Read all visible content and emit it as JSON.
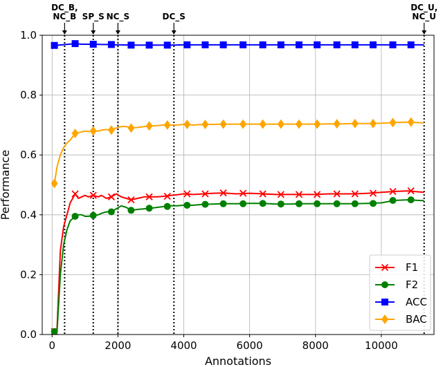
{
  "chart_data": {
    "type": "line",
    "title": "",
    "xlabel": "Annotations",
    "ylabel": "Performance",
    "xlim": [
      -300,
      11600
    ],
    "ylim": [
      0.0,
      1.0
    ],
    "xticks": [
      0,
      2000,
      4000,
      6000,
      8000,
      10000
    ],
    "xtick_labels": [
      "0",
      "2000",
      "4000",
      "6000",
      "8000",
      "10000"
    ],
    "yticks": [
      0.0,
      0.2,
      0.4,
      0.6,
      0.8,
      1.0
    ],
    "ytick_labels": [
      "0.0",
      "0.2",
      "0.4",
      "0.6",
      "0.8",
      "1.0"
    ],
    "grid": true,
    "legend_position": "lower-right",
    "markers": [
      {
        "x": 380,
        "lines": [
          "DC_B,",
          "NC_B"
        ]
      },
      {
        "x": 1250,
        "lines": [
          "SP_S"
        ]
      },
      {
        "x": 2000,
        "lines": [
          "NC_S"
        ]
      },
      {
        "x": 3700,
        "lines": [
          "DC_S"
        ]
      },
      {
        "x": 11300,
        "lines": [
          "DC_U,",
          "NC_U"
        ]
      }
    ],
    "series": [
      {
        "name": "F1",
        "color": "#ff0000",
        "marker": "x",
        "x": [
          70,
          150,
          250,
          350,
          450,
          550,
          700,
          800,
          900,
          1000,
          1100,
          1250,
          1400,
          1500,
          1650,
          1800,
          1950,
          2100,
          2250,
          2400,
          2600,
          2800,
          3000,
          3200,
          3400,
          3600,
          3800,
          4000,
          4300,
          4600,
          4900,
          5200,
          5600,
          6000,
          6400,
          6800,
          7200,
          7600,
          8000,
          8400,
          8800,
          9200,
          9600,
          10000,
          10400,
          10800,
          11300
        ],
        "y": [
          0.01,
          0.02,
          0.28,
          0.36,
          0.4,
          0.44,
          0.47,
          0.455,
          0.46,
          0.465,
          0.46,
          0.465,
          0.46,
          0.465,
          0.455,
          0.46,
          0.47,
          0.46,
          0.455,
          0.45,
          0.455,
          0.46,
          0.46,
          0.46,
          0.462,
          0.465,
          0.467,
          0.47,
          0.468,
          0.47,
          0.472,
          0.473,
          0.47,
          0.472,
          0.47,
          0.468,
          0.468,
          0.468,
          0.468,
          0.47,
          0.47,
          0.47,
          0.472,
          0.475,
          0.478,
          0.48,
          0.475
        ],
        "marker_x": [
          70,
          700,
          1250,
          1800,
          2400,
          2950,
          3500,
          4100,
          4650,
          5200,
          5800,
          6400,
          6950,
          7500,
          8050,
          8650,
          9200,
          9750,
          10350,
          10900
        ],
        "marker_y": [
          0.01,
          0.47,
          0.465,
          0.46,
          0.45,
          0.46,
          0.462,
          0.47,
          0.47,
          0.473,
          0.472,
          0.47,
          0.468,
          0.468,
          0.468,
          0.47,
          0.47,
          0.472,
          0.478,
          0.48
        ]
      },
      {
        "name": "F2",
        "color": "#008000",
        "marker": "o",
        "x": [
          70,
          150,
          250,
          350,
          450,
          550,
          700,
          800,
          900,
          1000,
          1100,
          1250,
          1400,
          1500,
          1650,
          1800,
          1950,
          2100,
          2250,
          2400,
          2600,
          2800,
          3000,
          3200,
          3400,
          3600,
          3800,
          4000,
          4300,
          4600,
          4900,
          5200,
          5600,
          6000,
          6400,
          6800,
          7200,
          7600,
          8000,
          8400,
          8800,
          9200,
          9600,
          10000,
          10400,
          10800,
          11300
        ],
        "y": [
          0.01,
          0.01,
          0.2,
          0.3,
          0.35,
          0.38,
          0.395,
          0.4,
          0.4,
          0.395,
          0.395,
          0.398,
          0.4,
          0.405,
          0.41,
          0.41,
          0.42,
          0.43,
          0.425,
          0.415,
          0.418,
          0.42,
          0.422,
          0.425,
          0.428,
          0.43,
          0.43,
          0.432,
          0.432,
          0.435,
          0.436,
          0.437,
          0.437,
          0.438,
          0.438,
          0.436,
          0.436,
          0.437,
          0.437,
          0.437,
          0.437,
          0.437,
          0.438,
          0.44,
          0.448,
          0.45,
          0.447
        ],
        "marker_x": [
          70,
          700,
          1250,
          1800,
          2400,
          2950,
          3500,
          4100,
          4650,
          5200,
          5800,
          6400,
          6950,
          7500,
          8050,
          8650,
          9200,
          9750,
          10350,
          10900
        ],
        "marker_y": [
          0.01,
          0.395,
          0.398,
          0.41,
          0.415,
          0.422,
          0.428,
          0.432,
          0.435,
          0.437,
          0.437,
          0.438,
          0.436,
          0.437,
          0.437,
          0.437,
          0.437,
          0.438,
          0.448,
          0.45
        ]
      },
      {
        "name": "ACC",
        "color": "#0000ff",
        "marker": "s",
        "x": [
          70,
          300,
          500,
          700,
          900,
          1100,
          1300,
          1500,
          1700,
          1900,
          2100,
          2400,
          2800,
          3200,
          3600,
          4000,
          4500,
          5000,
          5500,
          6000,
          6500,
          7000,
          7500,
          8000,
          8500,
          9000,
          9500,
          10000,
          10500,
          11000,
          11300
        ],
        "y": [
          0.966,
          0.968,
          0.97,
          0.972,
          0.97,
          0.97,
          0.97,
          0.969,
          0.969,
          0.968,
          0.968,
          0.967,
          0.967,
          0.967,
          0.967,
          0.968,
          0.968,
          0.968,
          0.968,
          0.968,
          0.968,
          0.968,
          0.968,
          0.968,
          0.968,
          0.968,
          0.968,
          0.968,
          0.968,
          0.968,
          0.968
        ],
        "marker_x": [
          70,
          700,
          1250,
          1800,
          2400,
          2950,
          3500,
          4100,
          4650,
          5200,
          5800,
          6400,
          6950,
          7500,
          8050,
          8650,
          9200,
          9750,
          10350,
          10900
        ],
        "marker_y": [
          0.966,
          0.972,
          0.97,
          0.969,
          0.967,
          0.967,
          0.967,
          0.968,
          0.968,
          0.968,
          0.968,
          0.968,
          0.968,
          0.968,
          0.968,
          0.968,
          0.968,
          0.968,
          0.968,
          0.968
        ]
      },
      {
        "name": "BAC",
        "color": "#ffa500",
        "marker": "d",
        "x": [
          70,
          150,
          250,
          350,
          450,
          550,
          700,
          800,
          900,
          1000,
          1100,
          1250,
          1400,
          1500,
          1650,
          1800,
          1950,
          2100,
          2250,
          2400,
          2600,
          2800,
          3000,
          3200,
          3400,
          3600,
          3800,
          4000,
          4300,
          4600,
          4900,
          5200,
          5600,
          6000,
          6400,
          6800,
          7200,
          7600,
          8000,
          8400,
          8800,
          9200,
          9600,
          10000,
          10400,
          10800,
          11300
        ],
        "y": [
          0.505,
          0.56,
          0.6,
          0.625,
          0.64,
          0.65,
          0.672,
          0.675,
          0.677,
          0.68,
          0.678,
          0.68,
          0.68,
          0.683,
          0.685,
          0.683,
          0.69,
          0.695,
          0.695,
          0.69,
          0.692,
          0.695,
          0.697,
          0.698,
          0.7,
          0.7,
          0.7,
          0.702,
          0.7,
          0.702,
          0.702,
          0.703,
          0.703,
          0.703,
          0.703,
          0.703,
          0.703,
          0.703,
          0.703,
          0.704,
          0.704,
          0.705,
          0.705,
          0.706,
          0.708,
          0.71,
          0.707
        ],
        "marker_x": [
          70,
          700,
          1250,
          1800,
          2400,
          2950,
          3500,
          4100,
          4650,
          5200,
          5800,
          6400,
          6950,
          7500,
          8050,
          8650,
          9200,
          9750,
          10350,
          10900
        ],
        "marker_y": [
          0.505,
          0.672,
          0.68,
          0.683,
          0.69,
          0.697,
          0.7,
          0.702,
          0.702,
          0.703,
          0.703,
          0.703,
          0.703,
          0.703,
          0.703,
          0.704,
          0.705,
          0.705,
          0.708,
          0.71
        ]
      }
    ]
  }
}
